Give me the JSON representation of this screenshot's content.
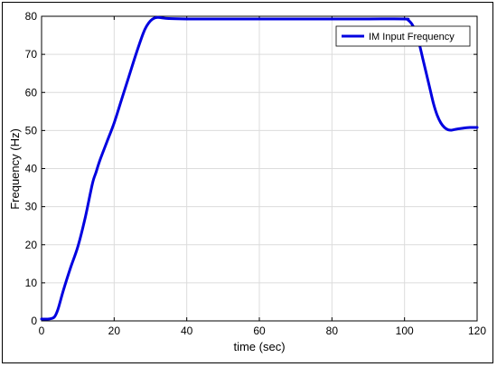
{
  "chart_data": {
    "type": "line",
    "title": "",
    "xlabel": "time (sec)",
    "ylabel": "Frequency (Hz)",
    "xlim": [
      0,
      120
    ],
    "ylim": [
      0,
      80
    ],
    "xticks": [
      0,
      20,
      40,
      60,
      80,
      100,
      120
    ],
    "yticks": [
      0,
      10,
      20,
      30,
      40,
      50,
      60,
      70,
      80
    ],
    "grid": true,
    "legend_position": "top-right",
    "series": [
      {
        "name": "IM Input Frequency",
        "color": "#0000e0",
        "x": [
          0,
          2,
          3.5,
          4.5,
          6,
          8,
          10,
          12,
          14,
          15,
          16,
          18,
          20,
          22,
          24,
          26,
          28,
          29,
          30,
          31,
          32,
          33,
          35,
          40,
          50,
          60,
          70,
          80,
          90,
          100,
          101,
          102,
          103,
          104,
          105,
          106,
          107,
          108,
          109,
          110,
          111,
          112,
          113,
          114,
          116,
          118,
          120
        ],
        "y": [
          0.5,
          0.5,
          1,
          3,
          8,
          14,
          19.5,
          27,
          36,
          39,
          42,
          47,
          52,
          58,
          64,
          70,
          75.5,
          77.5,
          78.8,
          79.5,
          79.7,
          79.6,
          79.4,
          79.3,
          79.3,
          79.3,
          79.3,
          79.3,
          79.3,
          79.3,
          79,
          78,
          76,
          73,
          69,
          65,
          61,
          57,
          54,
          52,
          50.8,
          50.2,
          50.1,
          50.3,
          50.6,
          50.8,
          50.8
        ]
      }
    ]
  }
}
